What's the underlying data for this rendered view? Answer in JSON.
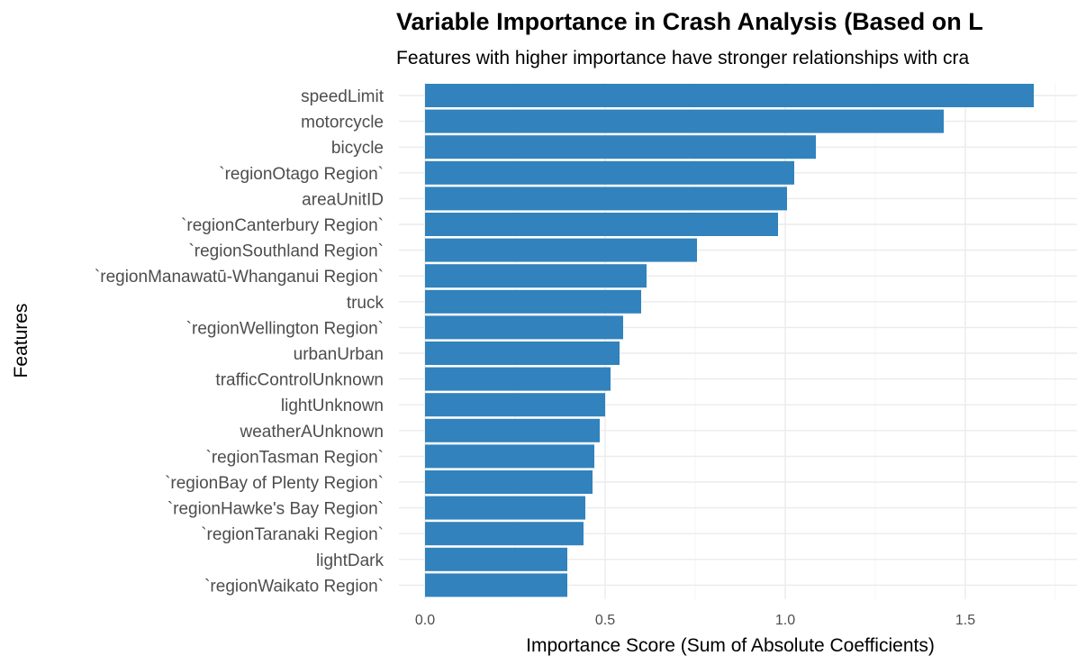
{
  "chart_data": {
    "type": "bar",
    "orientation": "horizontal",
    "title": "Variable Importance in Crash Analysis (Based on L",
    "subtitle": "Features with higher importance have stronger relationships with cra",
    "xlabel": "Importance Score (Sum of Absolute Coefficients)",
    "ylabel": "Features",
    "xlim": [
      0,
      1.75
    ],
    "x_ticks": [
      "0.0",
      "0.5",
      "1.0",
      "1.5"
    ],
    "grid": true,
    "bar_color": "#3182bd",
    "categories": [
      "speedLimit",
      "motorcycle",
      "bicycle",
      "`regionOtago Region`",
      "areaUnitID",
      "`regionCanterbury Region`",
      "`regionSouthland Region`",
      "`regionManawatū-Whanganui Region`",
      "truck",
      "`regionWellington Region`",
      "urbanUrban",
      "trafficControlUnknown",
      "lightUnknown",
      "weatherAUnknown",
      "`regionTasman Region`",
      "`regionBay of Plenty Region`",
      "`regionHawke's Bay Region`",
      "`regionTaranaki Region`",
      "lightDark",
      "`regionWaikato Region`"
    ],
    "values": [
      1.69,
      1.44,
      1.085,
      1.025,
      1.005,
      0.98,
      0.755,
      0.615,
      0.6,
      0.55,
      0.54,
      0.515,
      0.5,
      0.485,
      0.47,
      0.465,
      0.445,
      0.44,
      0.395,
      0.395
    ]
  }
}
